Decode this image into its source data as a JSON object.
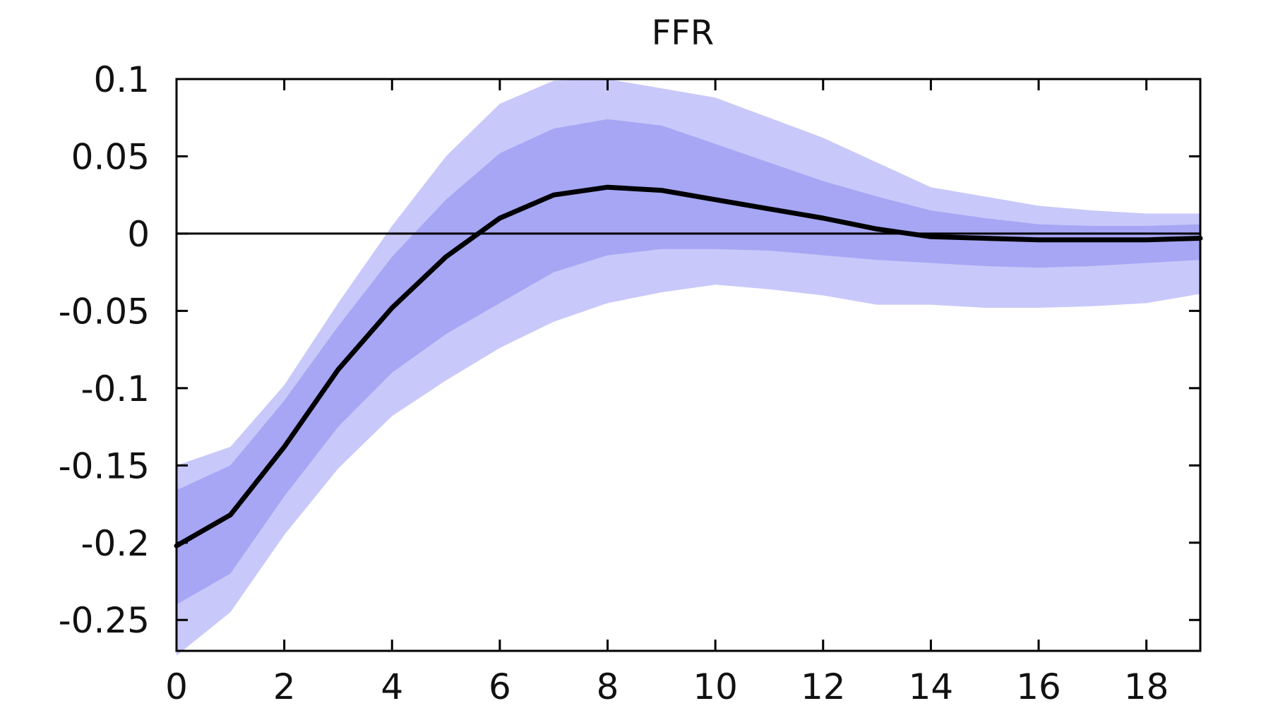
{
  "chart_data": {
    "type": "area",
    "title": "FFR",
    "xlabel": "",
    "ylabel": "",
    "xlim": [
      0,
      19
    ],
    "ylim": [
      -0.27,
      0.1
    ],
    "x_ticks": [
      0,
      2,
      4,
      6,
      8,
      10,
      12,
      14,
      16,
      18
    ],
    "x_tick_labels": [
      "0",
      "2",
      "4",
      "6",
      "8",
      "10",
      "12",
      "14",
      "16",
      "18"
    ],
    "y_ticks": [
      0.1,
      0.05,
      0,
      -0.05,
      -0.1,
      -0.15,
      -0.2,
      -0.25
    ],
    "y_tick_labels": [
      "0.1",
      "0.05",
      "0",
      "-0.05",
      "-0.1",
      "-0.15",
      "-0.2",
      "-0.25"
    ],
    "grid": false,
    "zero_line": true,
    "x": [
      0,
      1,
      2,
      3,
      4,
      5,
      6,
      7,
      8,
      9,
      10,
      11,
      12,
      13,
      14,
      15,
      16,
      17,
      18,
      19
    ],
    "median": [
      -0.202,
      -0.182,
      -0.138,
      -0.088,
      -0.048,
      -0.015,
      0.01,
      0.025,
      0.03,
      0.028,
      0.022,
      0.016,
      0.01,
      0.003,
      -0.002,
      -0.003,
      -0.004,
      -0.004,
      -0.004,
      -0.003
    ],
    "band_outer": {
      "upper": [
        -0.15,
        -0.138,
        -0.098,
        -0.045,
        0.005,
        0.05,
        0.084,
        0.099,
        0.1,
        0.094,
        0.088,
        0.075,
        0.062,
        0.046,
        0.03,
        0.024,
        0.018,
        0.015,
        0.013,
        0.013
      ],
      "lower": [
        -0.273,
        -0.245,
        -0.195,
        -0.152,
        -0.118,
        -0.095,
        -0.074,
        -0.057,
        -0.045,
        -0.038,
        -0.033,
        -0.036,
        -0.04,
        -0.046,
        -0.046,
        -0.048,
        -0.048,
        -0.047,
        -0.045,
        -0.039
      ]
    },
    "band_inner": {
      "upper": [
        -0.166,
        -0.15,
        -0.108,
        -0.06,
        -0.015,
        0.022,
        0.052,
        0.068,
        0.074,
        0.07,
        0.058,
        0.046,
        0.034,
        0.024,
        0.015,
        0.01,
        0.006,
        0.005,
        0.005,
        0.006
      ],
      "lower": [
        -0.24,
        -0.22,
        -0.17,
        -0.125,
        -0.09,
        -0.065,
        -0.045,
        -0.025,
        -0.014,
        -0.01,
        -0.01,
        -0.011,
        -0.014,
        -0.017,
        -0.019,
        -0.021,
        -0.022,
        -0.021,
        -0.019,
        -0.017
      ]
    },
    "colors": {
      "band_outer": "#c8c8fa",
      "band_inner": "#a6a6f5",
      "median_line": "#000000",
      "zero_line": "#000000",
      "axes": "#000000"
    }
  }
}
